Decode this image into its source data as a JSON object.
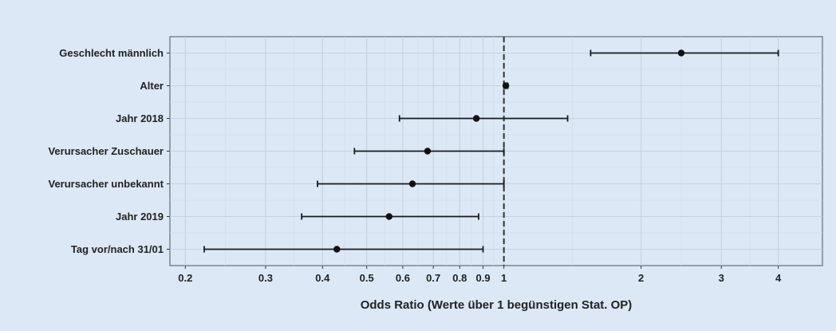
{
  "chart_data": {
    "type": "forest",
    "xlabel": "Odds Ratio (Werte über 1 begünstigen Stat. OP)",
    "ylabel": "",
    "title": "",
    "x_scale": "log",
    "xlim": [
      0.185,
      5.0
    ],
    "x_ticks": [
      0.2,
      0.3,
      0.4,
      0.5,
      0.6,
      0.7,
      0.8,
      0.9,
      1,
      2,
      3,
      4
    ],
    "x_tick_labels": [
      "0.2",
      "0.3",
      "0.4",
      "0.5",
      "0.6",
      "0.7",
      "0.8",
      "0.9",
      "1",
      "2",
      "3",
      "4"
    ],
    "reference_line": 1,
    "grid": true,
    "rows": [
      {
        "label": "Geschlecht männlich",
        "estimate": 2.45,
        "lower": 1.55,
        "upper": 4.0
      },
      {
        "label": "Alter",
        "estimate": 1.01,
        "lower": 1.0,
        "upper": 1.02
      },
      {
        "label": "Jahr 2018",
        "estimate": 0.87,
        "lower": 0.59,
        "upper": 1.38
      },
      {
        "label": "Verursacher Zuschauer",
        "estimate": 0.68,
        "lower": 0.47,
        "upper": 1.0
      },
      {
        "label": "Verursacher unbekannt",
        "estimate": 0.63,
        "lower": 0.39,
        "upper": 1.0
      },
      {
        "label": "Jahr 2019",
        "estimate": 0.56,
        "lower": 0.36,
        "upper": 0.88
      },
      {
        "label": "Tag vor/nach 31/01",
        "estimate": 0.43,
        "lower": 0.22,
        "upper": 0.9
      }
    ]
  },
  "colors": {
    "background": "#dce8f5",
    "points": "#111111",
    "reference_line": "#333333"
  }
}
